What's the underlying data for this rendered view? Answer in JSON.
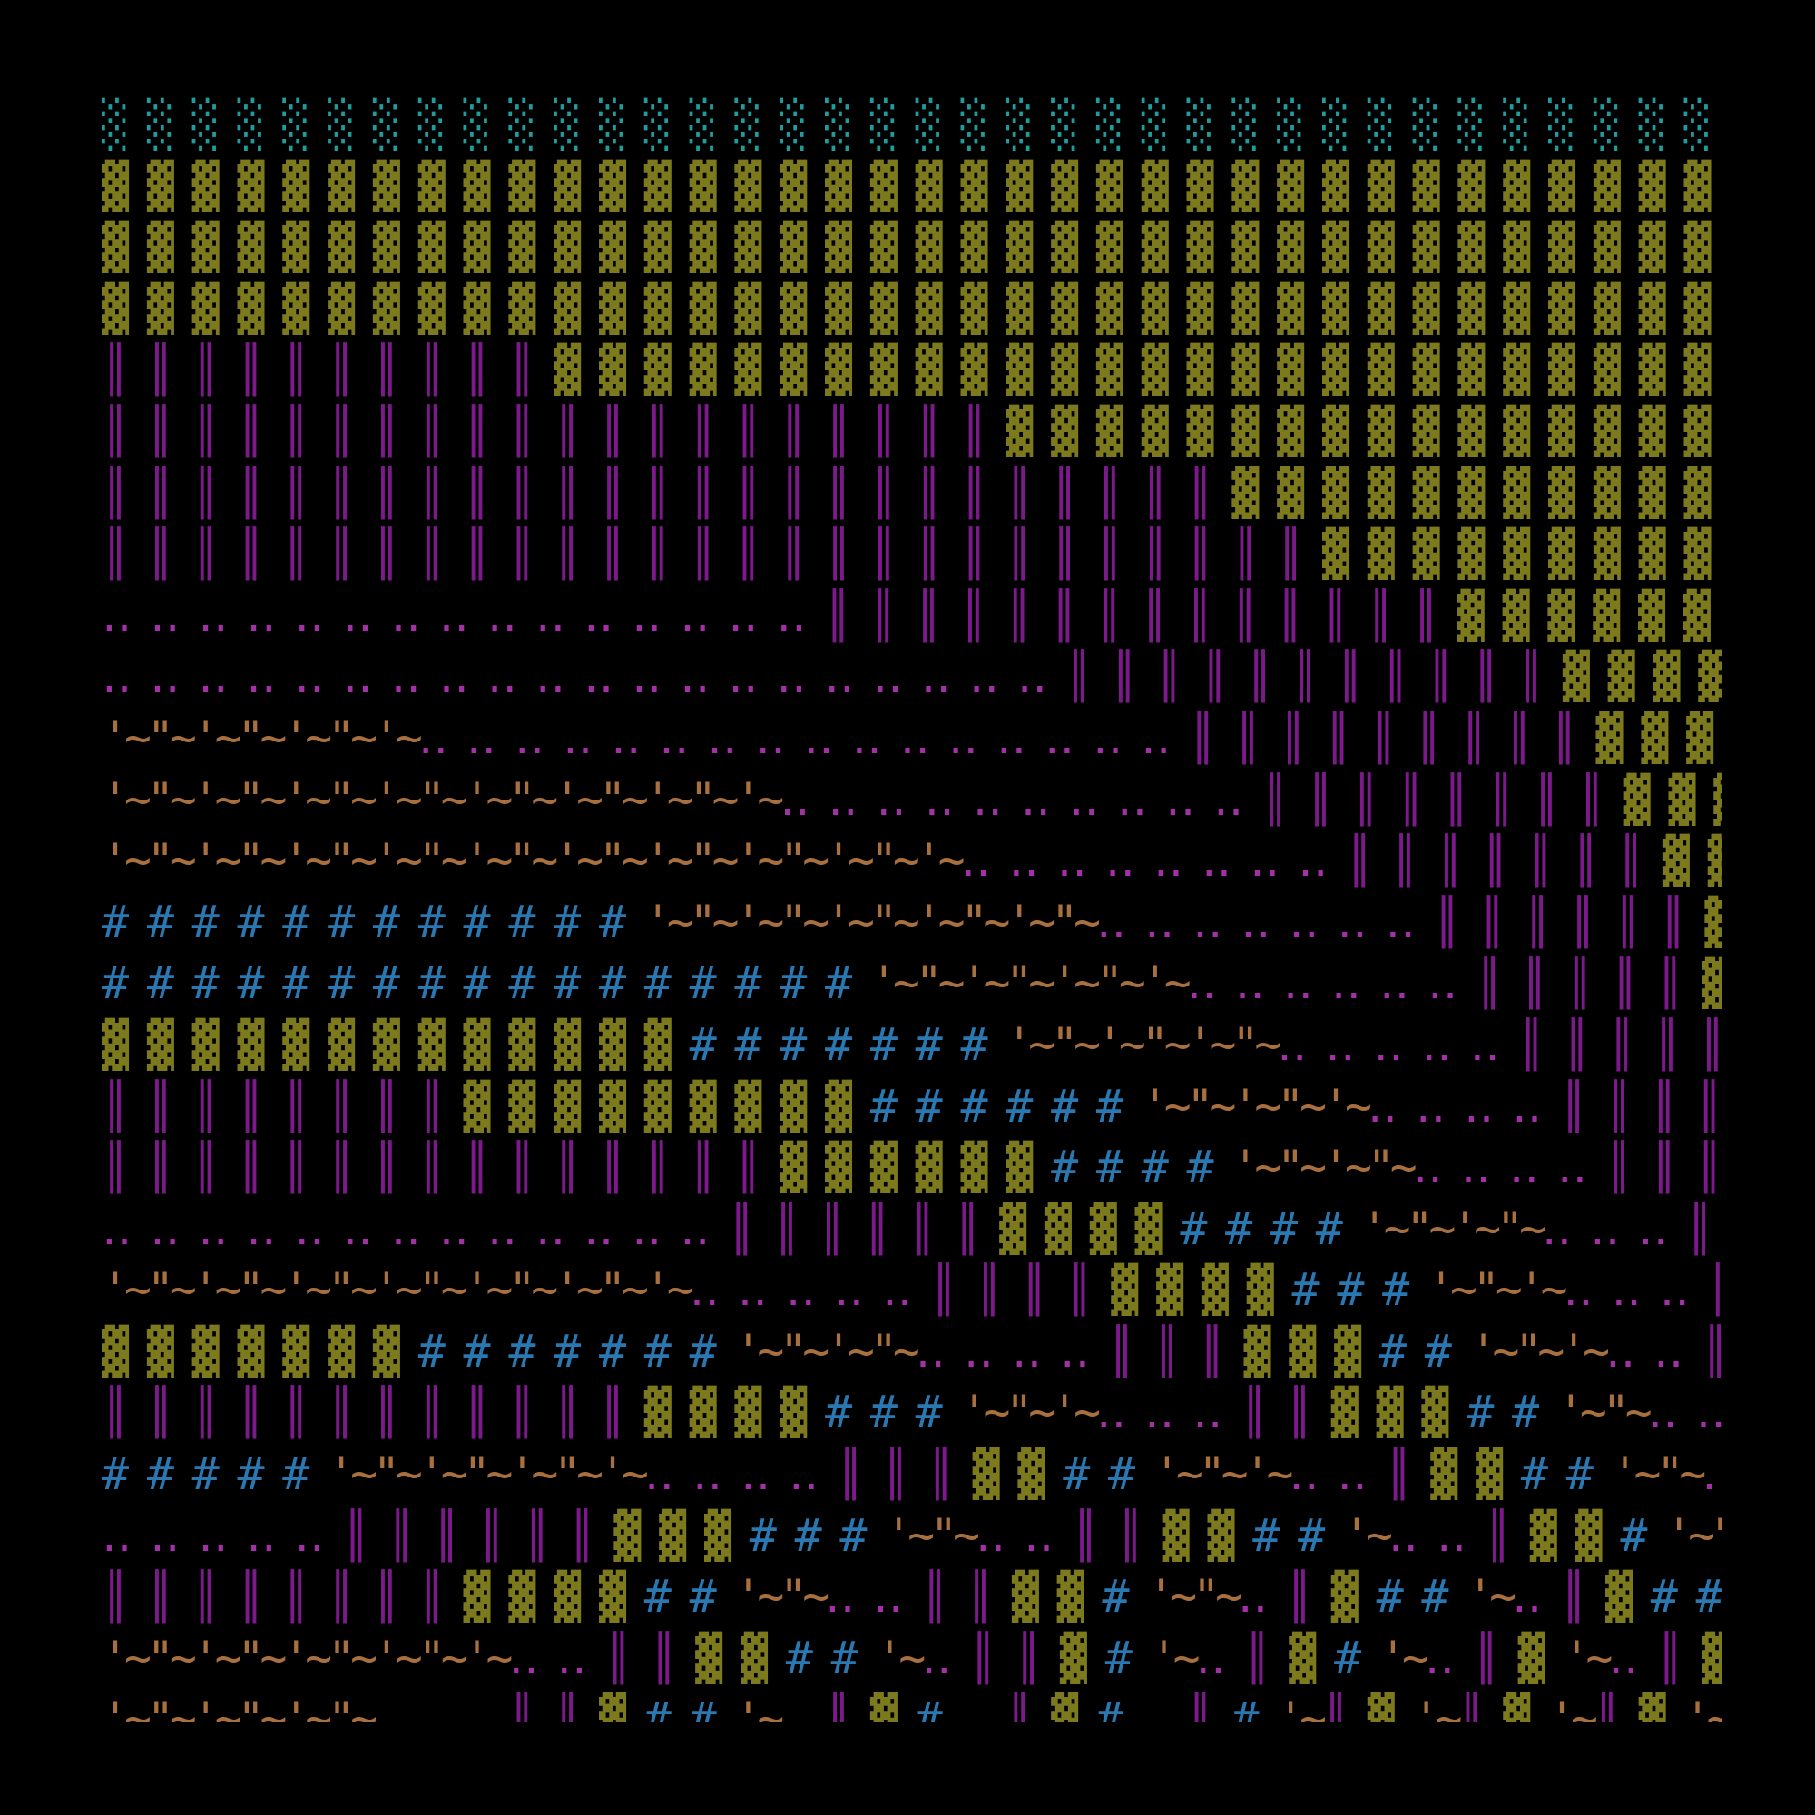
{
  "rows": [
    "░ ░ ░ ░ ░ ░ ░ ░ ░ ░ ░ ░ ░ ░ ░ ░ ░ ░ ░ ░ ░ ░ ░ ░ ░ ░ ░ ░ ░ ░ ░ ░ ░ ░ ░ ░ ░ ",
    "▓ ▓ ▓ ▓ ▓ ▓ ▓ ▓ ▓ ▓ ▓ ▓ ▓ ▓ ▓ ▓ ▓ ▓ ▓ ▓ ▓ ▓ ▓ ▓ ▓ ▓ ▓ ▓ ▓ ▓ ▓ ▓ ▓ ▓ ▓ ▓ ▓ ",
    "▓ ▓ ▓ ▓ ▓ ▓ ▓ ▓ ▓ ▓ ▓ ▓ ▓ ▓ ▓ ▓ ▓ ▓ ▓ ▓ ▓ ▓ ▓ ▓ ▓ ▓ ▓ ▓ ▓ ▓ ▓ ▓ ▓ ▓ ▓ ▓ ▓ ",
    "▓ ▓ ▓ ▓ ▓ ▓ ▓ ▓ ▓ ▓ ▓ ▓ ▓ ▓ ▓ ▓ ▓ ▓ ▓ ▓ ▓ ▓ ▓ ▓ ▓ ▓ ▓ ▓ ▓ ▓ ▓ ▓ ▓ ▓ ▓ ▓ ▓ ",
    "║ ║ ║ ║ ║ ║ ║ ║ ║ ║ ▓ ▓ ▓ ▓ ▓ ▓ ▓ ▓ ▓ ▓ ▓ ▓ ▓ ▓ ▓ ▓ ▓ ▓ ▓ ▓ ▓ ▓ ▓ ▓ ▓ ▓ ▓ ",
    "║ ║ ║ ║ ║ ║ ║ ║ ║ ║ ║ ║ ║ ║ ║ ║ ║ ║ ║ ║ ▓ ▓ ▓ ▓ ▓ ▓ ▓ ▓ ▓ ▓ ▓ ▓ ▓ ▓ ▓ ▓ ▓ ",
    "║ ║ ║ ║ ║ ║ ║ ║ ║ ║ ║ ║ ║ ║ ║ ║ ║ ║ ║ ║ ║ ║ ║ ║ ║ ▓ ▓ ▓ ▓ ▓ ▓ ▓ ▓ ▓ ▓ ▓ ▓ ",
    "║ ║ ║ ║ ║ ║ ║ ║ ║ ║ ║ ║ ║ ║ ║ ║ ║ ║ ║ ║ ║ ║ ║ ║ ║ ║ ║ ▓ ▓ ▓ ▓ ▓ ▓ ▓ ▓ ▓ ▓ ",
    "‥ ‥ ‥ ‥ ‥ ‥ ‥ ‥ ‥ ‥ ‥ ‥ ‥ ‥ ‥ ║ ║ ║ ║ ║ ║ ║ ║ ║ ║ ║ ║ ║ ║ ▓ ▓ ▓ ▓ ▓ ▓ ▓ ▓ ",
    "‥ ‥ ‥ ‥ ‥ ‥ ‥ ‥ ‥ ‥ ‥ ‥ ‥ ‥ ‥ ‥ ‥ ‥ ‥ ‥ ║ ║ ║ ║ ║ ║ ║ ║ ║ ║ ║ ▓ ▓ ▓ ▓ ▓ ▓ ",
    "'~\"~'~\"~'~\"~'~‥ ‥ ‥ ‥ ‥ ‥ ‥ ‥ ‥ ‥ ‥ ‥ ‥ ‥ ‥ ‥ ║ ║ ║ ║ ║ ║ ║ ║ ║ ▓ ▓ ▓ ▓ ▓ ",
    "'~\"~'~\"~'~\"~'~\"~'~\"~'~\"~'~\"~'~‥ ‥ ‥ ‥ ‥ ‥ ‥ ‥ ‥ ‥ ║ ║ ║ ║ ║ ║ ║ ║ ▓ ▓ ▓ ▓ ",
    "'~\"~'~\"~'~\"~'~\"~'~\"~'~\"~'~\"~'~\"~'~\"~'~‥ ‥ ‥ ‥ ‥ ‥ ‥ ‥ ║ ║ ║ ║ ║ ║ ║ ▓ ▓ ▓ ",
    "# # # # # # # # # # # # '~\"~'~\"~'~\"~'~\"~'~\"~‥ ‥ ‥ ‥ ‥ ‥ ‥ ║ ║ ║ ║ ║ ║ ▓ ▓ ",
    "# # # # # # # # # # # # # # # # # '~\"~'~\"~'~\"~'~‥ ‥ ‥ ‥ ‥ ‥ ║ ║ ║ ║ ║ ▓ ▓ ",
    "▓ ▓ ▓ ▓ ▓ ▓ ▓ ▓ ▓ ▓ ▓ ▓ ▓ # # # # # # # '~\"~'~\"~'~\"~‥ ‥ ‥ ‥ ‥ ║ ║ ║ ║ ║ ▓ ",
    "║ ║ ║ ║ ║ ║ ║ ║ ▓ ▓ ▓ ▓ ▓ ▓ ▓ ▓ ▓ # # # # # # '~\"~'~\"~'~‥ ‥ ‥ ‥ ║ ║ ║ ║ ▓ ",
    "║ ║ ║ ║ ║ ║ ║ ║ ║ ║ ║ ║ ║ ║ ║ ▓ ▓ ▓ ▓ ▓ ▓ # # # # '~\"~'~\"~‥ ‥ ‥ ‥ ║ ║ ║   ",
    "‥ ‥ ‥ ‥ ‥ ‥ ‥ ‥ ‥ ‥ ‥ ‥ ‥ ║ ║ ║ ║ ║ ║ ▓ ▓ ▓ ▓ # # # # '~\"~'~\"~‥ ‥ ‥ ║ ║   ",
    "'~\"~'~\"~'~\"~'~\"~'~\"~'~\"~'~‥ ‥ ‥ ‥ ‥ ║ ║ ║ ║ ▓ ▓ ▓ ▓ # # # '~\"~'~‥ ‥ ‥ ║   ",
    "▓ ▓ ▓ ▓ ▓ ▓ ▓ # # # # # # # '~\"~'~\"~‥ ‥ ‥ ‥ ║ ║ ║ ▓ ▓ ▓ # # '~\"~'~‥ ‥ ║   ",
    "║ ║ ║ ║ ║ ║ ║ ║ ║ ║ ║ ║ ▓ ▓ ▓ ▓ # # # '~\"~'~‥ ‥ ‥ ║ ║ ▓ ▓ ▓ # # '~\"~‥ ‥   ",
    "# # # # # '~\"~'~\"~'~\"~'~‥ ‥ ‥ ‥ ║ ║ ║ ▓ ▓ # # '~\"~'~‥ ‥ ║ ▓ ▓ # # '~\"~‥ ‥ ",
    "‥ ‥ ‥ ‥ ‥ ║ ║ ║ ║ ║ ║ ▓ ▓ ▓ # # # '~\"~‥ ‥ ║ ║ ▓ ▓ # # '~‥ ‥ ║ ▓ ▓ # '~\"~‥ ",
    "║ ║ ║ ║ ║ ║ ║ ║ ▓ ▓ ▓ ▓ # # '~\"~‥ ‥ ║ ║ ▓ ▓ # '~\"~‥ ║ ▓ # # '~‥ ║ ▓ # # '~",
    "'~\"~'~\"~'~\"~'~\"~'~‥ ‥ ║ ║ ▓ ▓ # # '~‥ ║ ║ ▓ # '~‥ ║ ▓ # '~‥ ║ ▓ '~‥ ║ ▓ # ",
    "'~\"~'~\"~'~\"~      ║ ║ ▓ # # '~  ║ ▓ #   ║ ▓ #   ║ # '~║ ▓ '~║ ▓ '~║ ▓ '~\"~"
  ],
  "palette": {
    "░": "#1f9d9d",
    "▓": "#7c7a1c",
    "║": "#7c1a8c",
    "‥": "#a52fa8",
    "'": "#a8703e",
    "\"": "#a8703e",
    "~": "#a8703e",
    "#": "#2a78b2"
  }
}
